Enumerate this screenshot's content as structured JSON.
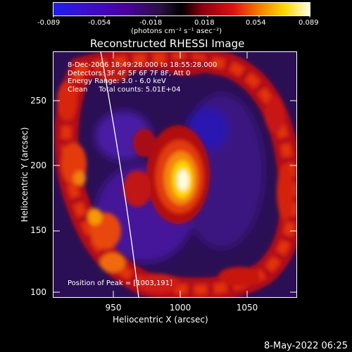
{
  "colorbar": {
    "tick_labels": [
      "-0.089",
      "-0.054",
      "-0.018",
      "0.018",
      "0.054",
      "0.089"
    ],
    "unit_label": "(photons cm⁻² s⁻¹ asec⁻²)",
    "colors": [
      "#1e1ef0",
      "#4a00b4",
      "#3a1a6a",
      "#000000",
      "#8a0010",
      "#e01010",
      "#f57a00",
      "#ffd800",
      "#ffffe0"
    ]
  },
  "title": "Reconstructed RHESSI Image",
  "info": {
    "time_range": "8-Dec-2006 18:49:28.000 to 18:55:28.000",
    "detectors": "Detectors: 3F 4F 5F 6F 7F 8F, Att 0",
    "energy": "Energy Range: 3.0 - 6.0 keV",
    "clean": "Clean     Total counts: 5.01E+04"
  },
  "peak": "Position of Peak = [1003,191]",
  "axes": {
    "x_label": "Heliocentric X (arcsec)",
    "y_label": "Heliocentric Y (arcsec)",
    "x_ticks": [
      "950",
      "1000",
      "1050"
    ],
    "y_ticks": [
      "250",
      "200",
      "150",
      "100"
    ]
  },
  "footer_date": "8-May-2022 06:25"
}
